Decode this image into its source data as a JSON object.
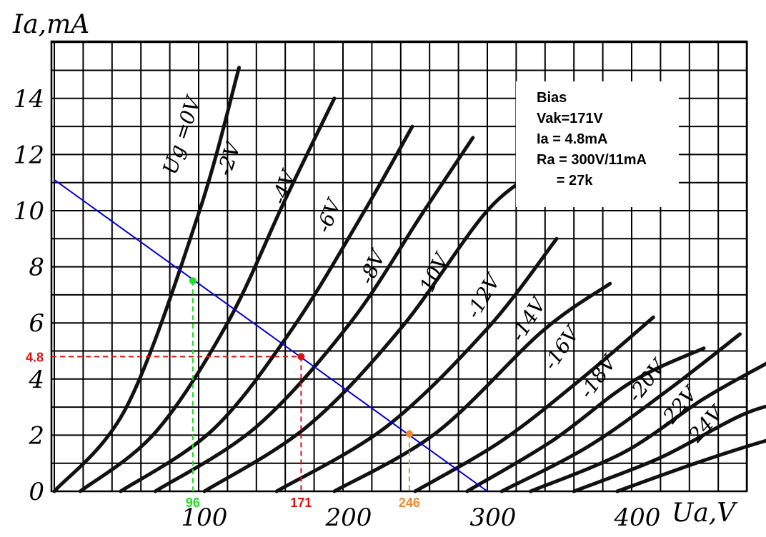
{
  "chart_data": {
    "type": "line",
    "xlabel": "Ua,V",
    "ylabel": "Ia,mA",
    "xlim": [
      0,
      480
    ],
    "ylim": [
      0,
      16
    ],
    "x_ticks": [
      {
        "value": 100,
        "label": "100"
      },
      {
        "value": 200,
        "label": "200"
      },
      {
        "value": 300,
        "label": "300"
      },
      {
        "value": 400,
        "label": "400"
      }
    ],
    "y_ticks": [
      {
        "value": 0,
        "label": "0"
      },
      {
        "value": 2,
        "label": "2"
      },
      {
        "value": 4,
        "label": "4"
      },
      {
        "value": 6,
        "label": "6"
      },
      {
        "value": 8,
        "label": "8"
      },
      {
        "value": 10,
        "label": "10"
      },
      {
        "value": 12,
        "label": "12"
      },
      {
        "value": 14,
        "label": "14"
      }
    ],
    "grid": true,
    "grid_step": {
      "x": 20,
      "y": 1
    },
    "series": [
      {
        "name": "Ug=0V",
        "label": "Ug =0V",
        "points": [
          [
            0,
            0
          ],
          [
            50,
            3
          ],
          [
            100,
            9.9
          ],
          [
            128,
            15.1
          ]
        ]
      },
      {
        "name": "-2V",
        "label": "-2V",
        "points": [
          [
            18,
            0
          ],
          [
            70,
            2.1
          ],
          [
            120,
            6
          ],
          [
            160,
            10.4
          ],
          [
            194,
            14
          ]
        ]
      },
      {
        "name": "-4V",
        "label": "-4V",
        "points": [
          [
            46,
            0
          ],
          [
            110,
            2.2
          ],
          [
            165,
            5.8
          ],
          [
            215,
            10
          ],
          [
            248,
            13
          ]
        ]
      },
      {
        "name": "-6V",
        "label": "-6V",
        "points": [
          [
            70,
            0
          ],
          [
            140,
            2.3
          ],
          [
            205,
            6
          ],
          [
            255,
            9.9
          ],
          [
            290,
            12.6
          ]
        ]
      },
      {
        "name": "-8V",
        "label": "-8V",
        "points": [
          [
            104,
            0
          ],
          [
            175,
            2.3
          ],
          [
            240,
            5.8
          ],
          [
            300,
            10
          ],
          [
            338,
            11.5
          ]
        ]
      },
      {
        "name": "-10V",
        "label": "-10V",
        "points": [
          [
            154,
            0
          ],
          [
            230,
            2.3
          ],
          [
            300,
            5.8
          ],
          [
            348,
            9
          ]
        ]
      },
      {
        "name": "-12V",
        "label": "-12V",
        "points": [
          [
            194,
            0
          ],
          [
            265,
            2.1
          ],
          [
            338,
            5.7
          ],
          [
            385,
            7.4
          ]
        ]
      },
      {
        "name": "-14V",
        "label": "-14V",
        "points": [
          [
            250,
            0
          ],
          [
            310,
            1.8
          ],
          [
            365,
            4
          ],
          [
            415,
            6.2
          ]
        ]
      },
      {
        "name": "-16V",
        "label": "-16V",
        "points": [
          [
            286,
            0
          ],
          [
            345,
            1.8
          ],
          [
            400,
            3.9
          ],
          [
            450,
            5.1
          ]
        ]
      },
      {
        "name": "-18V",
        "label": "-18V",
        "points": [
          [
            310,
            0
          ],
          [
            370,
            1.6
          ],
          [
            425,
            3.6
          ],
          [
            475,
            5.6
          ]
        ]
      },
      {
        "name": "-20V",
        "label": "-20V",
        "points": [
          [
            330,
            0
          ],
          [
            395,
            1.4
          ],
          [
            450,
            3.3
          ],
          [
            495,
            4.6
          ]
        ]
      },
      {
        "name": "-22V",
        "label": "-22V",
        "points": [
          [
            360,
            0
          ],
          [
            420,
            1.2
          ],
          [
            480,
            2.8
          ],
          [
            520,
            3.3
          ]
        ]
      },
      {
        "name": "-24V",
        "label": "-24V",
        "points": [
          [
            390,
            0
          ],
          [
            450,
            1.1
          ],
          [
            500,
            1.9
          ],
          [
            530,
            2.2
          ]
        ]
      }
    ],
    "load_line": {
      "points": [
        [
          0,
          11.1
        ],
        [
          300,
          0
        ]
      ],
      "color": "#0000dd"
    },
    "markers": [
      {
        "x": 96,
        "y": 7.5,
        "x_label": "96",
        "color": "#22dd22"
      },
      {
        "x": 171,
        "y": 4.8,
        "x_label": "171",
        "y_label": "4.8",
        "color": "#dd1111"
      },
      {
        "x": 246,
        "y": 2.05,
        "x_label": "246",
        "color": "#ee8833"
      }
    ]
  },
  "info": {
    "lines": [
      "Bias",
      "Vak=171V",
      "Ia = 4.8mA",
      "Ra = 300V/11mA",
      "     = 27k"
    ]
  }
}
